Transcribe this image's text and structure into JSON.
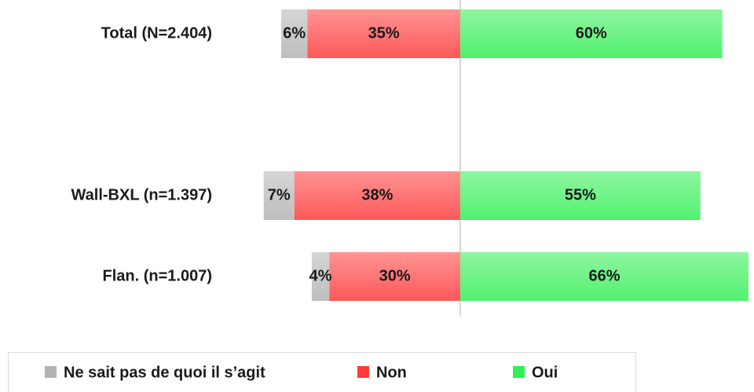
{
  "chart_data": {
    "type": "diverging_bar",
    "categories": [
      "Total (N=2.404)",
      null,
      "Wall-BXL (n=1.397)",
      "Flan. (n=1.007)"
    ],
    "series": [
      {
        "name": "Ne sait pas de quoi il s’agit",
        "color": "#b3b3b3",
        "values": [
          6,
          null,
          7,
          4
        ],
        "value_labels": [
          "6%",
          null,
          "7%",
          "4%"
        ]
      },
      {
        "name": "Non",
        "color": "#ff3b3b",
        "values": [
          35,
          null,
          38,
          30
        ],
        "value_labels": [
          "35%",
          null,
          "38%",
          "30%"
        ]
      },
      {
        "name": "Oui",
        "color": "#33ee55",
        "values": [
          60,
          null,
          55,
          66
        ],
        "value_labels": [
          "60%",
          null,
          "55%",
          "66%"
        ]
      }
    ],
    "legend": "bottom"
  }
}
